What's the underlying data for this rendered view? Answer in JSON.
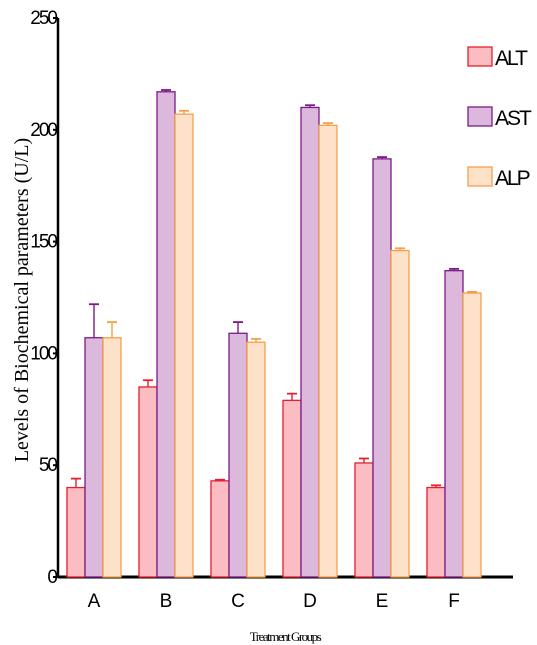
{
  "chart_data": {
    "type": "bar",
    "categories": [
      "A",
      "B",
      "C",
      "D",
      "E",
      "F"
    ],
    "series": [
      {
        "name": "ALT",
        "values": [
          40,
          85,
          43,
          79,
          51,
          40
        ],
        "errors": [
          4,
          3,
          0.5,
          3,
          2,
          1
        ],
        "fill": "#fbbdc1",
        "stroke": "#e4202e"
      },
      {
        "name": "AST",
        "values": [
          107,
          217,
          109,
          210,
          187,
          137
        ],
        "errors": [
          15,
          0.8,
          5,
          1,
          0.8,
          0.8
        ],
        "fill": "#dcb9dc",
        "stroke": "#7b1a86"
      },
      {
        "name": "ALP",
        "values": [
          107,
          207,
          105,
          202,
          146,
          127
        ],
        "errors": [
          7,
          1.5,
          1.5,
          1,
          1,
          0.5
        ],
        "fill": "#fde1c8",
        "stroke": "#f4a04b"
      }
    ],
    "ylim": [
      0,
      250
    ],
    "yticks": [
      "0",
      "50",
      "100",
      "150",
      "200",
      "250"
    ],
    "xlabel": "Treatment Groups",
    "ylabel": "Levels of Biochemical parameters (U/L)",
    "legend_position": "top-right",
    "grid": false
  }
}
